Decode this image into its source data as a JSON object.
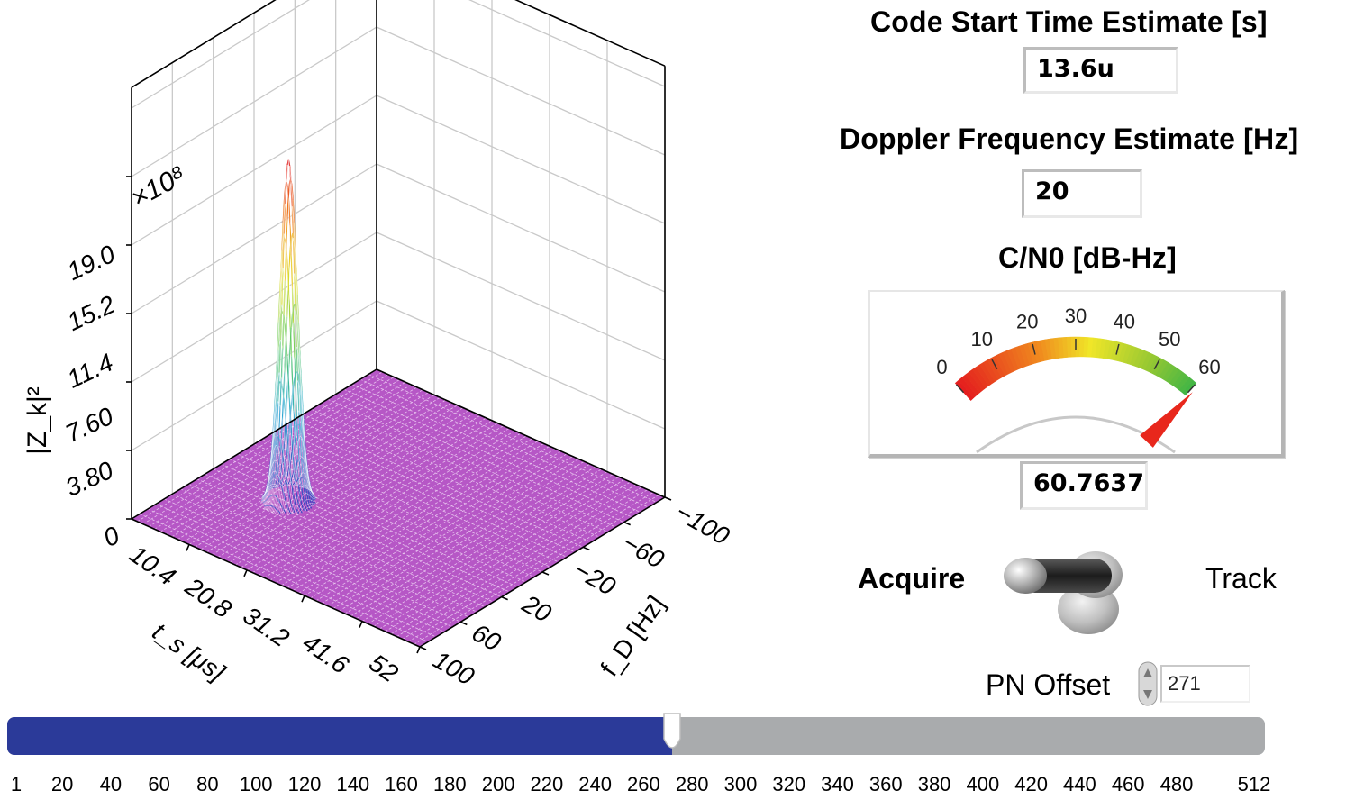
{
  "plot": {
    "z_axis_label": "|Z_k|²",
    "z_multiplier": "×10⁸",
    "z_ticks": [
      "0",
      "3.80",
      "7.60",
      "11.4",
      "15.2",
      "19.0"
    ],
    "ts_axis_label": "t_s [μs]",
    "ts_ticks": [
      "10.4",
      "20.8",
      "31.2",
      "41.6",
      "52"
    ],
    "fd_axis_label": "f_D [Hz]",
    "fd_ticks": [
      "−100",
      "−60",
      "−20",
      "20",
      "60",
      "100"
    ],
    "colors": {
      "floor": "#b657c6",
      "grid": "#c9c9c9"
    }
  },
  "code_start": {
    "title": "Code Start Time Estimate [s]",
    "value": "13.6u"
  },
  "doppler": {
    "title": "Doppler Frequency Estimate [Hz]",
    "value": "20"
  },
  "cn0": {
    "title": "C/N0 [dB-Hz]",
    "scale_labels": [
      "0",
      "10",
      "20",
      "30",
      "40",
      "50",
      "60"
    ],
    "min": 0,
    "max": 60,
    "value": 60.7637,
    "value_text": "60.7637",
    "needle_color": "#e8271c"
  },
  "mode_toggle": {
    "left_label": "Acquire",
    "right_label": "Track",
    "state": "Acquire"
  },
  "pn_offset": {
    "label": "PN Offset",
    "value": "271"
  },
  "slider": {
    "min": 1,
    "max": 512,
    "value": 271,
    "tick_labels": [
      "1",
      "20",
      "40",
      "60",
      "80",
      "100",
      "120",
      "140",
      "160",
      "180",
      "200",
      "220",
      "240",
      "260",
      "280",
      "300",
      "320",
      "340",
      "360",
      "380",
      "400",
      "420",
      "440",
      "460",
      "480",
      "512"
    ],
    "fill_color": "#2b3a99",
    "track_color": "#a9abad"
  }
}
